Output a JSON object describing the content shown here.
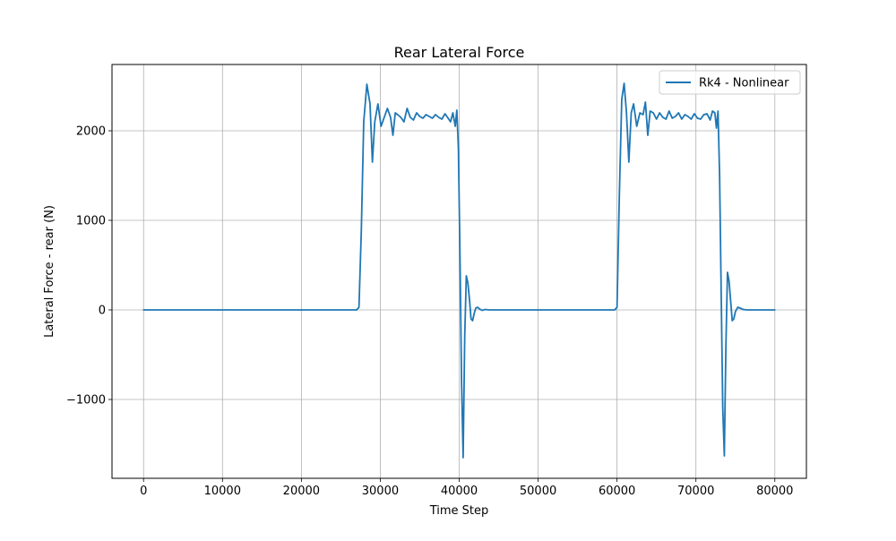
{
  "chart_data": {
    "type": "line",
    "title": "Rear Lateral Force",
    "xlabel": "Time Step",
    "ylabel": "Lateral Force - rear (N)",
    "xlim": [
      -4000,
      84000
    ],
    "ylim": [
      -1880,
      2740
    ],
    "xticks": [
      0,
      10000,
      20000,
      30000,
      40000,
      50000,
      60000,
      70000,
      80000
    ],
    "xtick_labels": [
      "0",
      "10000",
      "20000",
      "30000",
      "40000",
      "50000",
      "60000",
      "70000",
      "80000"
    ],
    "yticks": [
      -1000,
      0,
      1000,
      2000
    ],
    "ytick_labels": [
      "−1000",
      "0",
      "1000",
      "2000"
    ],
    "grid": true,
    "legend_position": "upper right",
    "series": [
      {
        "name": "Rk4 - Nonlinear",
        "color": "#1f77b4",
        "x": [
          0,
          27000,
          27300,
          27600,
          27900,
          28300,
          28700,
          29000,
          29300,
          29700,
          30100,
          30500,
          30900,
          31300,
          31600,
          31900,
          32200,
          32600,
          33000,
          33400,
          33800,
          34200,
          34600,
          35000,
          35400,
          35800,
          36200,
          36600,
          37000,
          37400,
          37800,
          38200,
          38600,
          38900,
          39200,
          39500,
          39700,
          39900,
          40100,
          40300,
          40500,
          40700,
          40900,
          41100,
          41300,
          41500,
          41700,
          41900,
          42100,
          42300,
          42600,
          42900,
          43300,
          43800,
          44500,
          59700,
          60000,
          60300,
          60600,
          60900,
          61200,
          61500,
          61800,
          62100,
          62500,
          62900,
          63300,
          63600,
          63900,
          64200,
          64600,
          65000,
          65400,
          65800,
          66200,
          66600,
          67000,
          67400,
          67800,
          68200,
          68600,
          69000,
          69400,
          69800,
          70200,
          70600,
          71000,
          71400,
          71800,
          72100,
          72400,
          72600,
          72800,
          73000,
          73200,
          73400,
          73600,
          73800,
          74000,
          74200,
          74400,
          74600,
          74800,
          75000,
          75300,
          75600,
          76000,
          76500,
          77000,
          80000
        ],
        "y": [
          0,
          0,
          30,
          900,
          2100,
          2520,
          2300,
          1650,
          2100,
          2300,
          2050,
          2150,
          2250,
          2150,
          1950,
          2200,
          2180,
          2150,
          2100,
          2250,
          2150,
          2120,
          2200,
          2160,
          2140,
          2180,
          2160,
          2140,
          2180,
          2150,
          2130,
          2190,
          2140,
          2100,
          2200,
          2050,
          2230,
          1800,
          600,
          -800,
          -1650,
          -300,
          380,
          300,
          120,
          -100,
          -120,
          -40,
          20,
          30,
          10,
          -5,
          5,
          0,
          0,
          0,
          30,
          1300,
          2350,
          2530,
          2200,
          1650,
          2200,
          2300,
          2050,
          2200,
          2180,
          2320,
          1950,
          2220,
          2200,
          2130,
          2200,
          2150,
          2130,
          2220,
          2140,
          2160,
          2200,
          2130,
          2180,
          2160,
          2130,
          2190,
          2140,
          2130,
          2180,
          2190,
          2120,
          2220,
          2200,
          2030,
          2220,
          1500,
          200,
          -1100,
          -1630,
          -400,
          420,
          320,
          100,
          -120,
          -100,
          -20,
          30,
          20,
          5,
          0,
          0,
          0
        ]
      }
    ]
  }
}
